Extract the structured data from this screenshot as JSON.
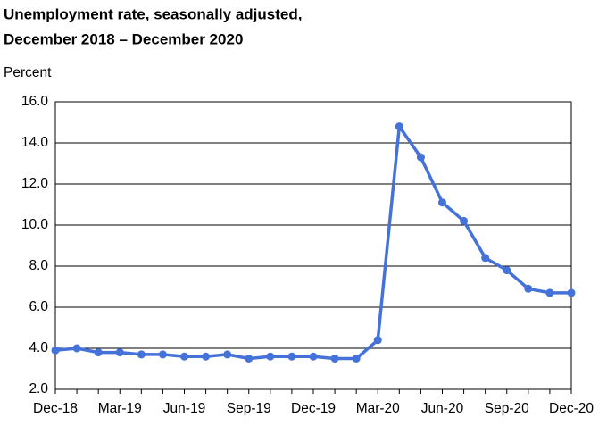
{
  "chart_data": {
    "type": "line",
    "title": [
      "Unemployment rate, seasonally adjusted,",
      "December 2018 – December 2020"
    ],
    "y_label": "Percent",
    "categories": [
      "Dec-18",
      null,
      null,
      "Mar-19",
      null,
      null,
      "Jun-19",
      null,
      null,
      "Sep-19",
      null,
      null,
      "Dec-19",
      null,
      null,
      "Mar-20",
      null,
      null,
      "Jun-20",
      null,
      null,
      "Sep-20",
      null,
      null,
      "Dec-20"
    ],
    "values": [
      3.9,
      4.0,
      3.8,
      3.8,
      3.7,
      3.7,
      3.6,
      3.6,
      3.7,
      3.5,
      3.6,
      3.6,
      3.6,
      3.5,
      3.5,
      4.4,
      14.8,
      13.3,
      11.1,
      10.2,
      8.4,
      7.8,
      6.9,
      6.7,
      6.7
    ],
    "color": "#4472d8",
    "ylim": [
      2,
      16
    ],
    "yticks": [
      {
        "value": 2,
        "label": "2.0"
      },
      {
        "value": 4,
        "label": "4.0"
      },
      {
        "value": 6,
        "label": "6.0"
      },
      {
        "value": 8,
        "label": "8.0"
      },
      {
        "value": 10,
        "label": "10.0"
      },
      {
        "value": 12,
        "label": "12.0"
      },
      {
        "value": 14,
        "label": "14.0"
      },
      {
        "value": 16,
        "label": "16.0"
      }
    ],
    "grid": true
  }
}
